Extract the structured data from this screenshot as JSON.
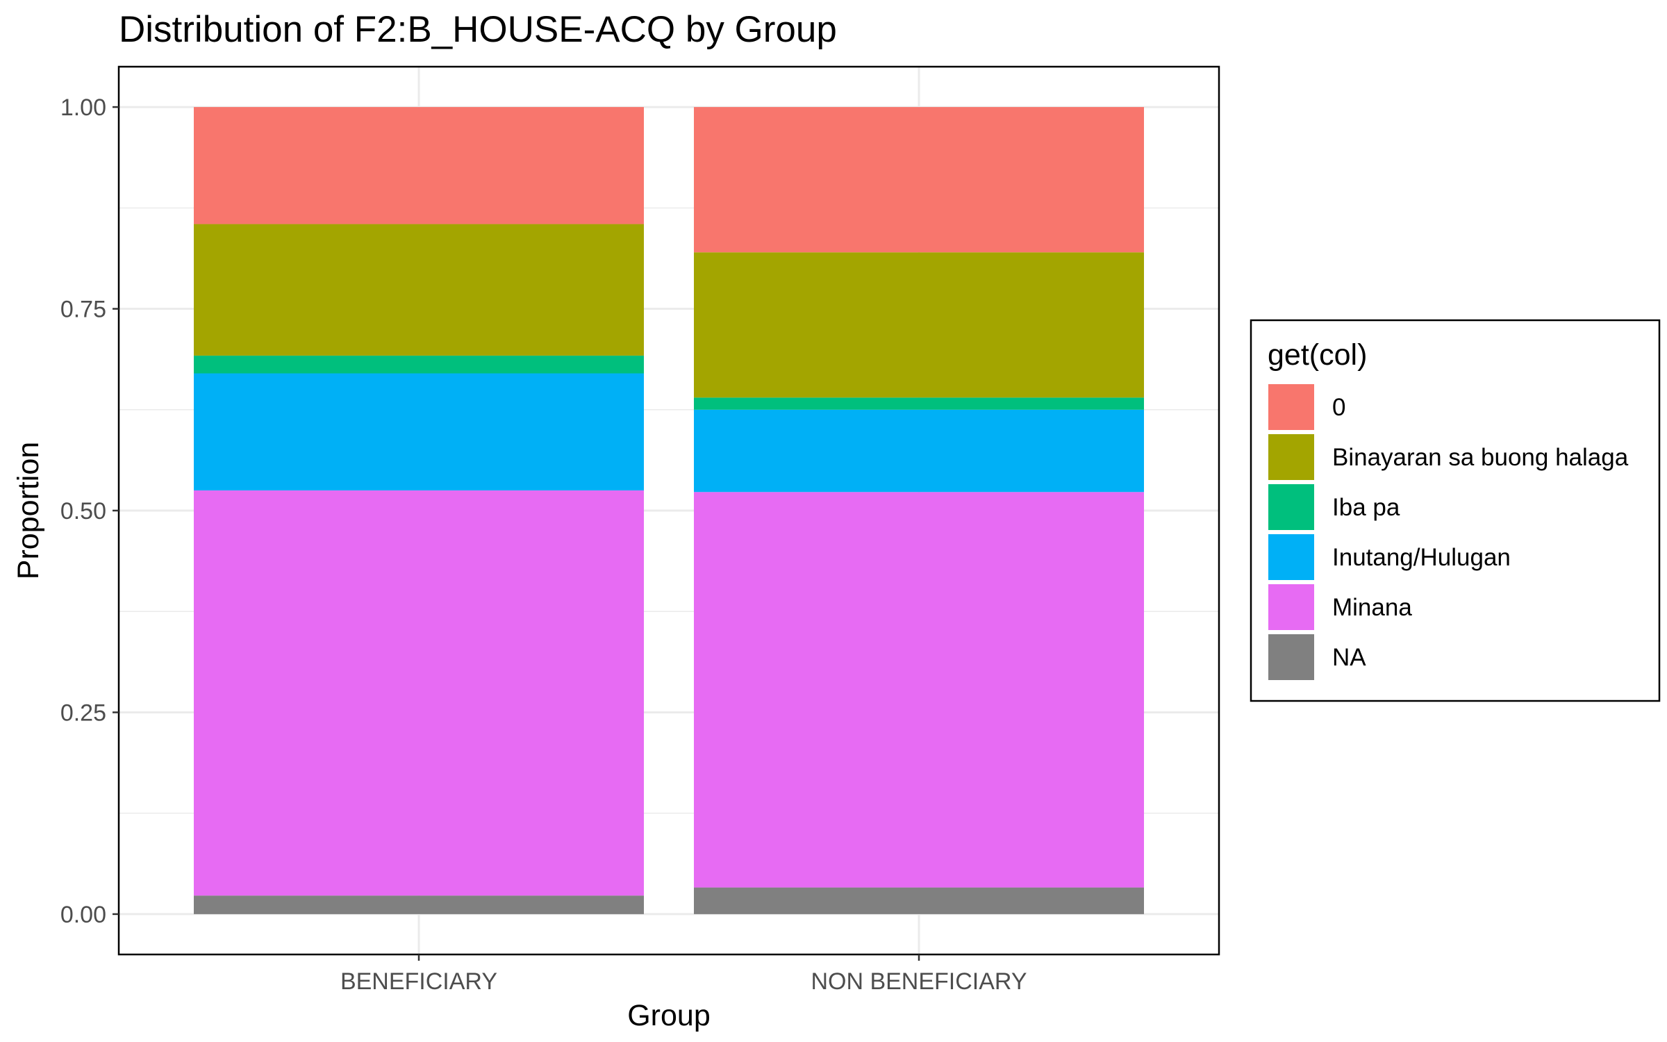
{
  "chart_data": {
    "type": "bar",
    "stacked": true,
    "title": "Distribution of F2:B_HOUSE-ACQ by Group",
    "xlabel": "Group",
    "ylabel": "Proportion",
    "ylim": [
      0,
      1.05
    ],
    "yticks": [
      "0.00",
      "0.25",
      "0.50",
      "0.75",
      "1.00"
    ],
    "grid": true,
    "categories": [
      "BENEFICIARY",
      "NON BENEFICIARY"
    ],
    "legend": {
      "title": "get(col)",
      "position": "right"
    },
    "series": [
      {
        "name": "0",
        "color": "#F8766D",
        "values": [
          0.145,
          0.18
        ]
      },
      {
        "name": "Binayaran sa buong halaga",
        "color": "#A3A500",
        "values": [
          0.163,
          0.18
        ]
      },
      {
        "name": "Iba pa",
        "color": "#00BF7D",
        "values": [
          0.022,
          0.015
        ]
      },
      {
        "name": "Inutang/Hulugan",
        "color": "#00B0F6",
        "values": [
          0.145,
          0.102
        ]
      },
      {
        "name": "Minana",
        "color": "#E76BF3",
        "values": [
          0.502,
          0.49
        ]
      },
      {
        "name": "NA",
        "color": "#808080",
        "values": [
          0.023,
          0.033
        ]
      }
    ]
  }
}
